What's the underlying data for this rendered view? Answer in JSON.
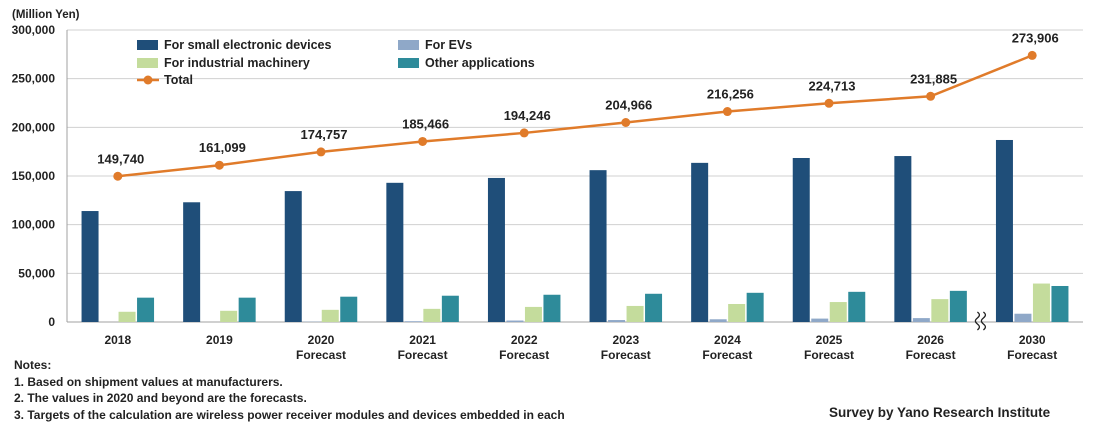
{
  "chart_data": {
    "type": "bar",
    "unit_label": "(Million Yen)",
    "categories": [
      "2018",
      "2019",
      "2020\nForecast",
      "2021\nForecast",
      "2022\nForecast",
      "2023\nForecast",
      "2024\nForecast",
      "2025\nForecast",
      "2026\nForecast",
      "2030\nForecast"
    ],
    "series": [
      {
        "name": "For small electronic devices",
        "type": "bar",
        "color": "#1f4e79",
        "values": [
          114000,
          123000,
          134500,
          143000,
          148000,
          156000,
          163500,
          168500,
          170500,
          187000
        ]
      },
      {
        "name": "For EVs",
        "type": "bar",
        "color": "#8fa8c8",
        "values": [
          0,
          0,
          300,
          800,
          1500,
          2000,
          2800,
          3500,
          4000,
          8500
        ]
      },
      {
        "name": "For industrial machinery",
        "type": "bar",
        "color": "#c4dc9c",
        "values": [
          10500,
          11500,
          12500,
          13500,
          15500,
          16500,
          18500,
          20500,
          23500,
          39500
        ]
      },
      {
        "name": "Other applications",
        "type": "bar",
        "color": "#2e8b9a",
        "values": [
          25000,
          25000,
          26000,
          27000,
          28000,
          29000,
          30000,
          31000,
          32000,
          37000
        ]
      },
      {
        "name": "Total",
        "type": "line",
        "color": "#e07b2a",
        "values": [
          149740,
          161099,
          174757,
          185466,
          194246,
          204966,
          216256,
          224713,
          231885,
          273906
        ]
      }
    ],
    "total_labels": [
      "149,740",
      "161,099",
      "174,757",
      "185,466",
      "194,246",
      "204,966",
      "216,256",
      "224,713",
      "231,885",
      "273,906"
    ],
    "yticks": [
      0,
      50000,
      100000,
      150000,
      200000,
      250000,
      300000
    ],
    "ytick_labels": [
      "0",
      "50,000",
      "100,000",
      "150,000",
      "200,000",
      "250,000",
      "300,000"
    ],
    "ylim": [
      0,
      300000
    ],
    "gridlines": true,
    "legend_position": "top-left",
    "axis_break_between": [
      "2026\nForecast",
      "2030\nForecast"
    ]
  },
  "notes": {
    "title": "Notes:",
    "items": [
      "1. Based on shipment values at manufacturers.",
      "2. The values in 2020  and beyond are the forecasts.",
      "3. Targets of the calculation are wireless power receiver modules and devices embedded  in each"
    ]
  },
  "source": "Survey by Yano Research Institute"
}
